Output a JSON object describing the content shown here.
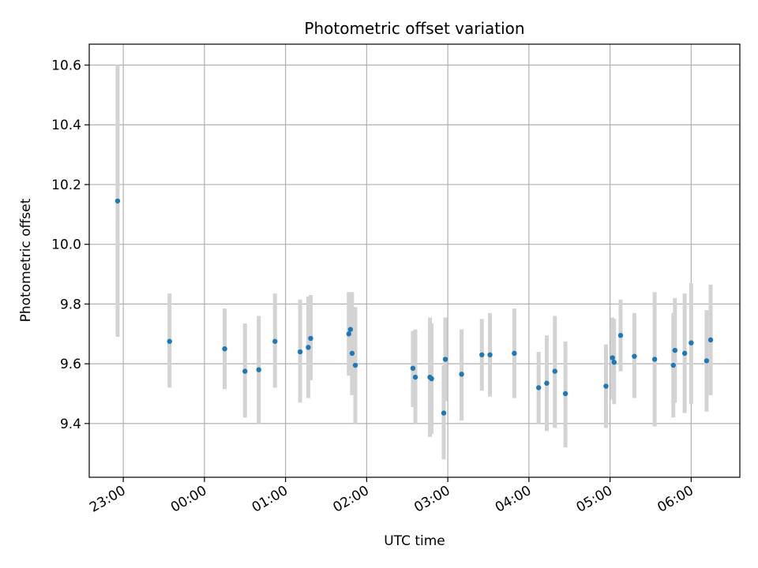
{
  "chart_data": {
    "type": "scatter",
    "title": "Photometric offset variation",
    "xlabel": "UTC time",
    "ylabel": "Photometric offset",
    "x_unit": "hours since 22:00 UTC",
    "xlim": [
      22.58,
      30.6
    ],
    "ylim": [
      9.22,
      10.67
    ],
    "x_ticks": [
      {
        "value": 23,
        "label": "23:00"
      },
      {
        "value": 24,
        "label": "00:00"
      },
      {
        "value": 25,
        "label": "01:00"
      },
      {
        "value": 26,
        "label": "02:00"
      },
      {
        "value": 27,
        "label": "03:00"
      },
      {
        "value": 28,
        "label": "04:00"
      },
      {
        "value": 29,
        "label": "05:00"
      },
      {
        "value": 30,
        "label": "06:00"
      }
    ],
    "y_ticks": [
      {
        "value": 9.4,
        "label": "9.4"
      },
      {
        "value": 9.6,
        "label": "9.6"
      },
      {
        "value": 9.8,
        "label": "9.8"
      },
      {
        "value": 10.0,
        "label": "10.0"
      },
      {
        "value": 10.2,
        "label": "10.2"
      },
      {
        "value": 10.4,
        "label": "10.4"
      },
      {
        "value": 10.6,
        "label": "10.6"
      }
    ],
    "grid": true,
    "colors": {
      "marker": "#1f77b4",
      "errorbar": "#d3d3d3",
      "grid": "#b0b0b0"
    },
    "points": [
      {
        "x": 22.93,
        "y": 10.145,
        "lo": 9.69,
        "hi": 10.6
      },
      {
        "x": 23.57,
        "y": 9.675,
        "lo": 9.52,
        "hi": 9.835
      },
      {
        "x": 24.25,
        "y": 9.65,
        "lo": 9.515,
        "hi": 9.785
      },
      {
        "x": 24.5,
        "y": 9.575,
        "lo": 9.42,
        "hi": 9.735
      },
      {
        "x": 24.67,
        "y": 9.58,
        "lo": 9.4,
        "hi": 9.76
      },
      {
        "x": 24.87,
        "y": 9.675,
        "lo": 9.52,
        "hi": 9.835
      },
      {
        "x": 25.18,
        "y": 9.64,
        "lo": 9.47,
        "hi": 9.815
      },
      {
        "x": 25.28,
        "y": 9.655,
        "lo": 9.485,
        "hi": 9.825
      },
      {
        "x": 25.31,
        "y": 9.685,
        "lo": 9.545,
        "hi": 9.83
      },
      {
        "x": 25.78,
        "y": 9.7,
        "lo": 9.56,
        "hi": 9.84
      },
      {
        "x": 25.8,
        "y": 9.715,
        "lo": 9.59,
        "hi": 9.835
      },
      {
        "x": 25.82,
        "y": 9.635,
        "lo": 9.495,
        "hi": 9.84
      },
      {
        "x": 25.86,
        "y": 9.595,
        "lo": 9.4,
        "hi": 9.79
      },
      {
        "x": 26.57,
        "y": 9.585,
        "lo": 9.455,
        "hi": 9.71
      },
      {
        "x": 26.6,
        "y": 9.555,
        "lo": 9.4,
        "hi": 9.715
      },
      {
        "x": 26.78,
        "y": 9.555,
        "lo": 9.355,
        "hi": 9.755
      },
      {
        "x": 26.8,
        "y": 9.55,
        "lo": 9.365,
        "hi": 9.735
      },
      {
        "x": 26.95,
        "y": 9.435,
        "lo": 9.28,
        "hi": 9.595
      },
      {
        "x": 26.97,
        "y": 9.615,
        "lo": 9.475,
        "hi": 9.755
      },
      {
        "x": 27.17,
        "y": 9.565,
        "lo": 9.41,
        "hi": 9.715
      },
      {
        "x": 27.42,
        "y": 9.63,
        "lo": 9.51,
        "hi": 9.75
      },
      {
        "x": 27.52,
        "y": 9.63,
        "lo": 9.49,
        "hi": 9.77
      },
      {
        "x": 27.82,
        "y": 9.635,
        "lo": 9.485,
        "hi": 9.785
      },
      {
        "x": 28.12,
        "y": 9.52,
        "lo": 9.4,
        "hi": 9.64
      },
      {
        "x": 28.22,
        "y": 9.535,
        "lo": 9.375,
        "hi": 9.695
      },
      {
        "x": 28.32,
        "y": 9.575,
        "lo": 9.385,
        "hi": 9.76
      },
      {
        "x": 28.45,
        "y": 9.5,
        "lo": 9.32,
        "hi": 9.675
      },
      {
        "x": 28.95,
        "y": 9.525,
        "lo": 9.385,
        "hi": 9.665
      },
      {
        "x": 29.03,
        "y": 9.62,
        "lo": 9.48,
        "hi": 9.755
      },
      {
        "x": 29.05,
        "y": 9.605,
        "lo": 9.465,
        "hi": 9.75
      },
      {
        "x": 29.13,
        "y": 9.695,
        "lo": 9.575,
        "hi": 9.815
      },
      {
        "x": 29.3,
        "y": 9.625,
        "lo": 9.485,
        "hi": 9.77
      },
      {
        "x": 29.55,
        "y": 9.615,
        "lo": 9.39,
        "hi": 9.84
      },
      {
        "x": 29.78,
        "y": 9.595,
        "lo": 9.42,
        "hi": 9.77
      },
      {
        "x": 29.8,
        "y": 9.645,
        "lo": 9.47,
        "hi": 9.82
      },
      {
        "x": 29.92,
        "y": 9.635,
        "lo": 9.435,
        "hi": 9.835
      },
      {
        "x": 30.0,
        "y": 9.67,
        "lo": 9.465,
        "hi": 9.87
      },
      {
        "x": 30.19,
        "y": 9.61,
        "lo": 9.44,
        "hi": 9.78
      },
      {
        "x": 30.24,
        "y": 9.68,
        "lo": 9.495,
        "hi": 9.865
      }
    ]
  }
}
